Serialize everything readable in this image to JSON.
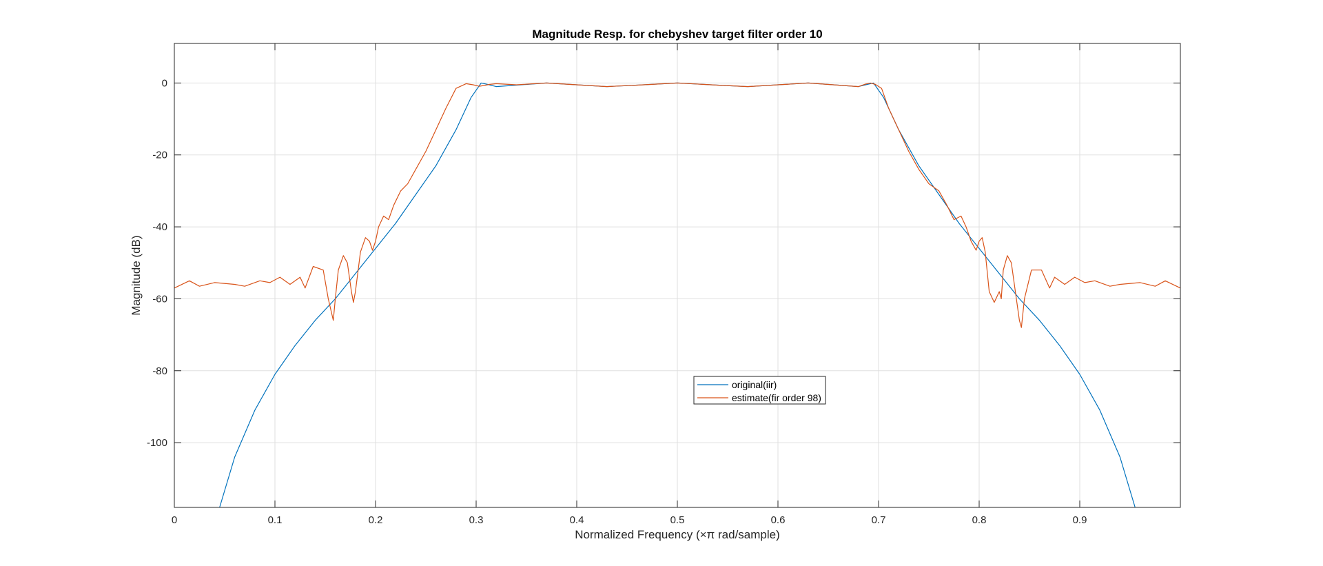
{
  "chart_data": {
    "type": "line",
    "title": "Magnitude Resp. for chebyshev target filter order 10",
    "xlabel": "Normalized Frequency (×π rad/sample)",
    "ylabel": "Magnitude (dB)",
    "xlim": [
      0,
      1
    ],
    "ylim": [
      -118,
      11
    ],
    "xticks": [
      0,
      0.1,
      0.2,
      0.3,
      0.4,
      0.5,
      0.6,
      0.7,
      0.8,
      0.9
    ],
    "xtick_labels": [
      "0",
      "0.1",
      "0.2",
      "0.3",
      "0.4",
      "0.5",
      "0.6",
      "0.7",
      "0.8",
      "0.9"
    ],
    "yticks": [
      0,
      -20,
      -40,
      -60,
      -80,
      -100
    ],
    "ytick_labels": [
      "0",
      "-20",
      "-40",
      "-60",
      "-80",
      "-100"
    ],
    "grid": true,
    "legend_position": "center-lower",
    "series": [
      {
        "name": "original(iir)",
        "color": "#0072BD",
        "x": [
          0.045,
          0.06,
          0.08,
          0.1,
          0.12,
          0.14,
          0.16,
          0.18,
          0.2,
          0.22,
          0.24,
          0.26,
          0.28,
          0.295,
          0.305,
          0.31,
          0.32,
          0.34,
          0.37,
          0.4,
          0.43,
          0.46,
          0.5,
          0.54,
          0.57,
          0.6,
          0.63,
          0.66,
          0.68,
          0.69,
          0.695,
          0.705,
          0.72,
          0.74,
          0.76,
          0.78,
          0.8,
          0.82,
          0.84,
          0.86,
          0.88,
          0.9,
          0.92,
          0.94,
          0.955
        ],
        "y": [
          -118,
          -104,
          -91,
          -81,
          -73,
          -66,
          -60,
          -53,
          -46,
          -39,
          -31,
          -23,
          -13,
          -4,
          0,
          -0.3,
          -1,
          -0.6,
          0,
          -0.5,
          -1,
          -0.6,
          0,
          -0.6,
          -1,
          -0.5,
          0,
          -0.6,
          -1,
          -0.3,
          0,
          -4,
          -13,
          -23,
          -31,
          -39,
          -46,
          -53,
          -60,
          -66,
          -73,
          -81,
          -91,
          -104,
          -118
        ]
      },
      {
        "name": "estimate(fir order 98)",
        "color": "#D95319",
        "x": [
          0.0,
          0.015,
          0.025,
          0.04,
          0.06,
          0.07,
          0.085,
          0.095,
          0.105,
          0.115,
          0.125,
          0.13,
          0.138,
          0.148,
          0.153,
          0.158,
          0.16,
          0.163,
          0.168,
          0.172,
          0.176,
          0.178,
          0.18,
          0.185,
          0.19,
          0.194,
          0.197,
          0.2,
          0.203,
          0.208,
          0.213,
          0.218,
          0.225,
          0.232,
          0.24,
          0.25,
          0.26,
          0.27,
          0.28,
          0.29,
          0.297,
          0.303,
          0.308,
          0.313,
          0.32,
          0.34,
          0.37,
          0.4,
          0.43,
          0.46,
          0.5,
          0.54,
          0.57,
          0.6,
          0.63,
          0.66,
          0.68,
          0.687,
          0.692,
          0.697,
          0.703,
          0.71,
          0.72,
          0.73,
          0.74,
          0.75,
          0.76,
          0.768,
          0.775,
          0.782,
          0.787,
          0.792,
          0.797,
          0.8,
          0.803,
          0.806,
          0.81,
          0.815,
          0.82,
          0.822,
          0.824,
          0.828,
          0.832,
          0.837,
          0.84,
          0.842,
          0.845,
          0.852,
          0.862,
          0.87,
          0.875,
          0.885,
          0.895,
          0.905,
          0.915,
          0.93,
          0.94,
          0.96,
          0.975,
          0.985,
          1.0
        ],
        "y": [
          -57,
          -55,
          -56.5,
          -55.5,
          -56,
          -56.5,
          -55,
          -55.5,
          -54,
          -56,
          -54,
          -57,
          -51,
          -52,
          -60,
          -66,
          -60,
          -52,
          -48,
          -50,
          -58,
          -61,
          -58,
          -47,
          -43,
          -44,
          -46.5,
          -44,
          -40,
          -37,
          -38,
          -34,
          -30,
          -28,
          -24,
          -19,
          -13,
          -7,
          -1.5,
          -0.2,
          -0.5,
          -0.9,
          -0.7,
          -0.4,
          -0.2,
          -0.5,
          0,
          -0.5,
          -1,
          -0.6,
          0,
          -0.6,
          -1,
          -0.5,
          0,
          -0.6,
          -1,
          -0.3,
          0,
          -0.4,
          -1.5,
          -7,
          -13,
          -19,
          -24,
          -28,
          -30,
          -34,
          -38,
          -37,
          -40,
          -44,
          -46.5,
          -44,
          -43,
          -47,
          -58,
          -61,
          -58,
          -60,
          -52,
          -48,
          -50,
          -60,
          -66,
          -68,
          -60,
          -52,
          -52,
          -57,
          -54,
          -56,
          -54,
          -55.5,
          -55,
          -56.5,
          -56,
          -55.5,
          -56.5,
          -55,
          -57
        ]
      }
    ]
  }
}
